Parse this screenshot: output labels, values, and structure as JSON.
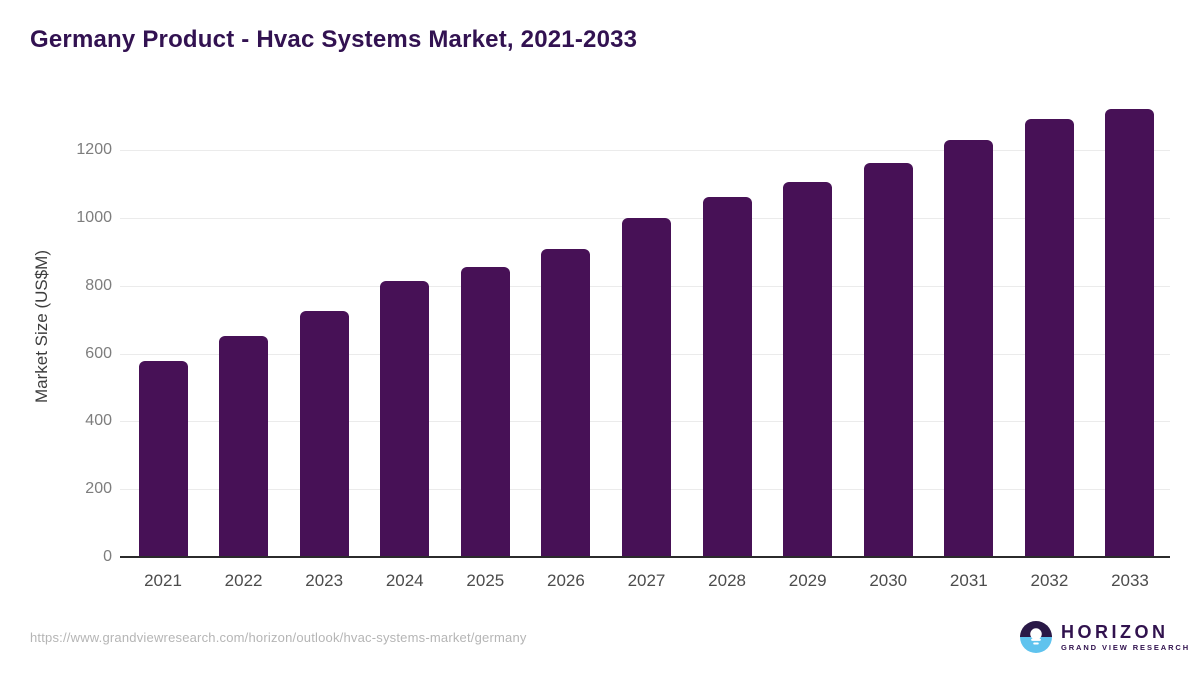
{
  "title": "Germany Product - Hvac Systems Market, 2021-2033",
  "chart_data": {
    "type": "bar",
    "title": "Germany Product - Hvac Systems Market, 2021-2033",
    "categories": [
      "2021",
      "2022",
      "2023",
      "2024",
      "2025",
      "2026",
      "2027",
      "2028",
      "2029",
      "2030",
      "2031",
      "2032",
      "2033"
    ],
    "values": [
      576,
      648,
      723,
      812,
      853,
      907,
      997,
      1061,
      1103,
      1161,
      1228,
      1289,
      1319
    ],
    "xlabel": "",
    "ylabel": "Market Size (US$M)",
    "ylim": [
      0,
      1360
    ],
    "yticks": [
      0,
      200,
      400,
      600,
      800,
      1000,
      1200
    ],
    "grid": "horizontal-light",
    "legend": "none",
    "bar_color": "#471156"
  },
  "footer": {
    "source_url": "https://www.grandviewresearch.com/horizon/outlook/hvac-systems-market/germany"
  },
  "logo": {
    "wordmark": "HORIZON",
    "subtitle": "GRAND VIEW RESEARCH"
  },
  "colors": {
    "bar": "#471156",
    "title_text": "#321251",
    "axis_line": "#2b2b2b",
    "gridline": "#ebebeb",
    "y_tick_text": "#7d7d7d",
    "x_tick_text": "#4c4c4c",
    "url_text": "#b5b5b5",
    "logo_dark": "#2a1947",
    "logo_blue": "#5fc3ee"
  }
}
